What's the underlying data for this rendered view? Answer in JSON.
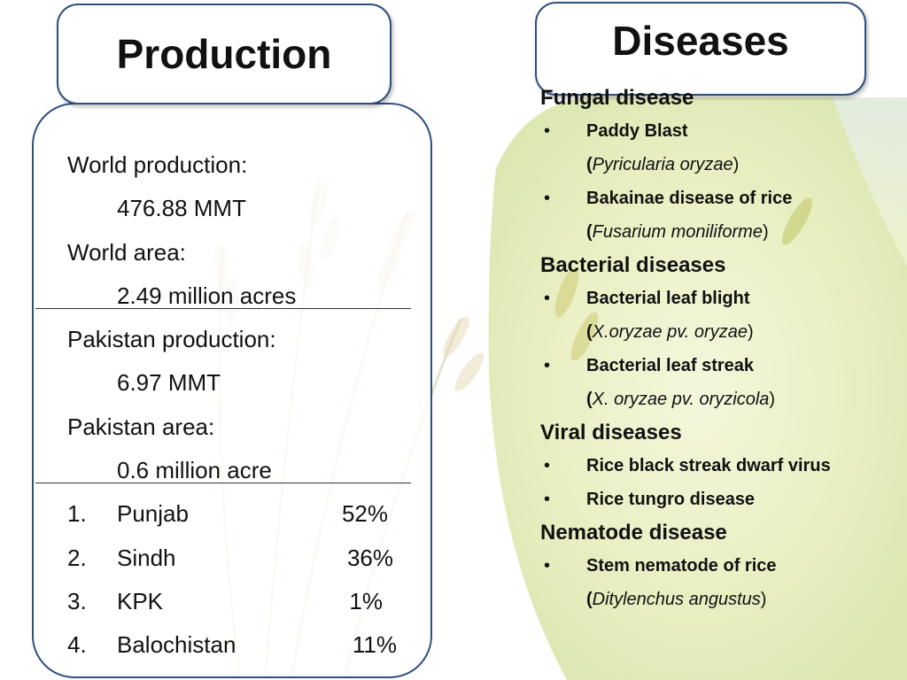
{
  "production": {
    "title": "Production",
    "lines": [
      {
        "label": "World production:",
        "value": "476.88 MMT"
      },
      {
        "label": "World area:",
        "value": "2.49 million acres"
      },
      {
        "label": "Pakistan production:",
        "value": "6.97 MMT"
      },
      {
        "label": "Pakistan area:",
        "value": "0.6 million acre"
      }
    ],
    "provinces": [
      {
        "num": "1.",
        "name": "Punjab",
        "share": "52%"
      },
      {
        "num": "2.",
        "name": "Sindh",
        "share": "36%"
      },
      {
        "num": "3.",
        "name": "KPK",
        "share": "1%"
      },
      {
        "num": "4.",
        "name": "Balochistan",
        "share": "11%"
      }
    ]
  },
  "diseases": {
    "title": "Diseases",
    "bullet": "•",
    "categories": [
      {
        "name": "Fungal disease",
        "items": [
          {
            "name": "Paddy Blast",
            "sci": "Pyricularia oryzae"
          },
          {
            "name": "Bakainae disease of rice",
            "sci": "Fusarium moniliforme"
          }
        ]
      },
      {
        "name": "Bacterial diseases",
        "items": [
          {
            "name": "Bacterial leaf blight",
            "sci": "X.oryzae pv. oryzae"
          },
          {
            "name": "Bacterial leaf streak",
            "sci": "X. oryzae pv. oryzicola"
          }
        ]
      },
      {
        "name": "Viral diseases",
        "items": [
          {
            "name": "Rice black streak dwarf virus"
          },
          {
            "name": "Rice tungro disease"
          }
        ]
      },
      {
        "name": "Nematode disease",
        "items": [
          {
            "name": "Stem nematode of rice",
            "sci": "Ditylenchus angustus"
          }
        ]
      }
    ]
  },
  "colors": {
    "border": "#2f4f7f",
    "wheat": "#e8dcc0",
    "field": "#e6ecb8"
  }
}
